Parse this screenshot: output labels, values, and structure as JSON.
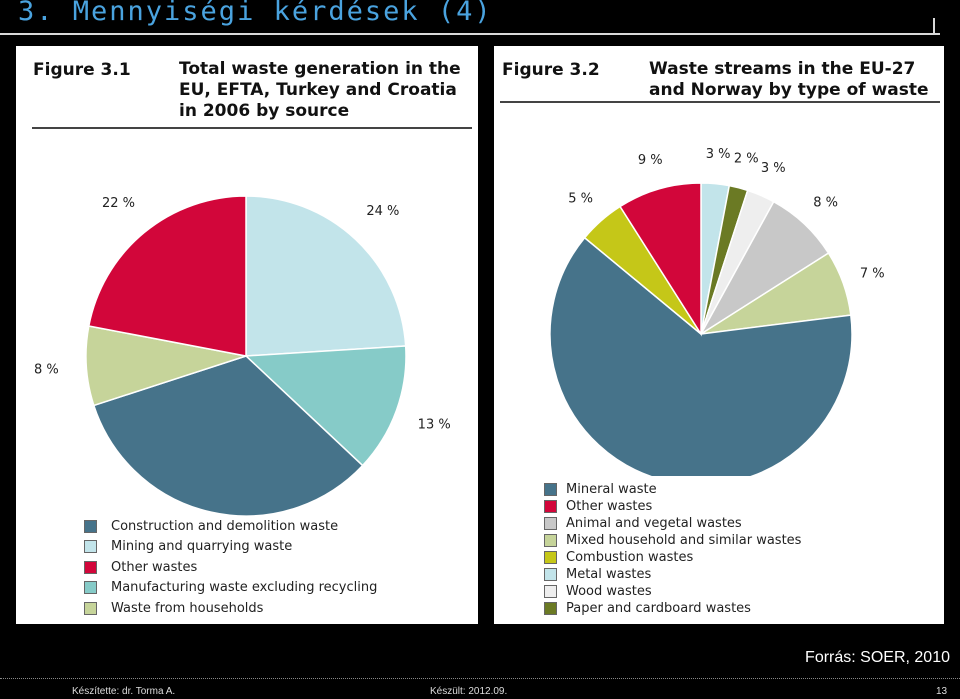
{
  "slide": {
    "title": "3. Mennyiségi kérdések (4)",
    "source": "Forrás: SOER, 2010",
    "footer_author": "Készítette: dr. Torma A.",
    "footer_date": "Készült: 2012.09.",
    "page_number": "13"
  },
  "chart_data": [
    {
      "type": "pie",
      "figure": "Figure 3.1",
      "title": "Total waste generation in the EU, EFTA, Turkey and Croatia in 2006 by source",
      "title_lines": [
        "Total waste generation in the",
        "EU, EFTA, Turkey and Croatia",
        "in 2006 by source"
      ],
      "legend_placement": "bottom",
      "slices": [
        {
          "name": "Mining and quarrying waste",
          "value": 24,
          "label": "24 %",
          "color": "#c2e4ea"
        },
        {
          "name": "Manufacturing waste excluding recycling",
          "value": 13,
          "label": "13 %",
          "color": "#86cbc8"
        },
        {
          "name": "Construction and demolition waste",
          "value": 33,
          "label": "33 %",
          "color": "#46738a"
        },
        {
          "name": "Waste from households",
          "value": 8,
          "label": "8 %",
          "color": "#c6d49a"
        },
        {
          "name": "Other wastes",
          "value": 22,
          "label": "22 %",
          "color": "#d2063a"
        }
      ],
      "legend": [
        {
          "label": "Construction and demolition waste",
          "color": "#46738a"
        },
        {
          "label": "Mining and quarrying waste",
          "color": "#c2e4ea"
        },
        {
          "label": "Other wastes",
          "color": "#d2063a"
        },
        {
          "label": "Manufacturing waste excluding recycling",
          "color": "#86cbc8"
        },
        {
          "label": "Waste from households",
          "color": "#c6d49a"
        }
      ]
    },
    {
      "type": "pie",
      "figure": "Figure 3.2",
      "title": "Waste streams in the EU-27 and Norway by type of waste",
      "title_lines": [
        "Waste streams in the EU-27",
        "and Norway by type of waste"
      ],
      "legend_placement": "bottom",
      "slices": [
        {
          "name": "Metal wastes",
          "value": 3,
          "label": "3 %",
          "color": "#c2e4ea"
        },
        {
          "name": "Paper and cardboard wastes",
          "value": 2,
          "label": "2 %",
          "color": "#6b7a24"
        },
        {
          "name": "Wood wastes",
          "value": 3,
          "label": "3 %",
          "color": "#eeeeee"
        },
        {
          "name": "Animal and vegetal wastes",
          "value": 8,
          "label": "8 %",
          "color": "#c8c8c8"
        },
        {
          "name": "Mixed household and similar wastes",
          "value": 7,
          "label": "7 %",
          "color": "#c6d49a"
        },
        {
          "name": "Mineral waste",
          "value": 63,
          "label": "63 %",
          "color": "#46738a"
        },
        {
          "name": "Combustion wastes",
          "value": 5,
          "label": "5 %",
          "color": "#c5c718"
        },
        {
          "name": "Other wastes",
          "value": 9,
          "label": "9 %",
          "color": "#d2063a"
        }
      ],
      "legend": [
        {
          "label": "Mineral waste",
          "color": "#46738a"
        },
        {
          "label": "Other wastes",
          "color": "#d2063a"
        },
        {
          "label": "Animal and vegetal wastes",
          "color": "#c8c8c8"
        },
        {
          "label": "Mixed household and similar wastes",
          "color": "#c6d49a"
        },
        {
          "label": "Combustion wastes",
          "color": "#c5c718"
        },
        {
          "label": "Metal wastes",
          "color": "#c2e4ea"
        },
        {
          "label": "Wood wastes",
          "color": "#eeeeee"
        },
        {
          "label": "Paper and cardboard wastes",
          "color": "#6b7a24"
        }
      ]
    }
  ]
}
